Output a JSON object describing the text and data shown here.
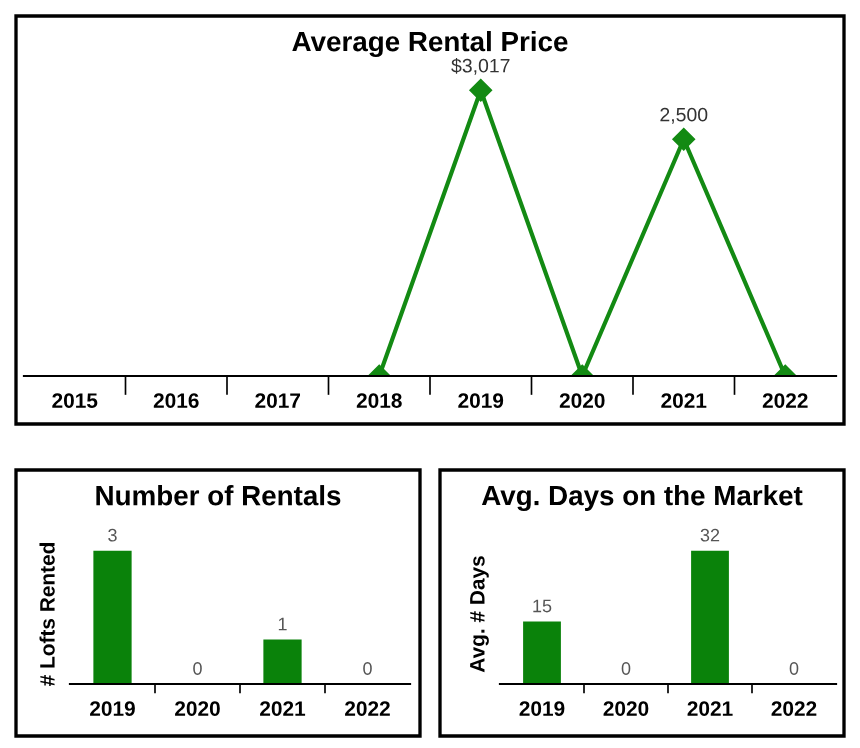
{
  "chart_data": [
    {
      "type": "line",
      "title": "Average Rental Price",
      "categories": [
        "2015",
        "2016",
        "2017",
        "2018",
        "2019",
        "2020",
        "2021",
        "2022"
      ],
      "series": [
        {
          "color": "#138a13",
          "values": [
            null,
            null,
            null,
            0,
            3017,
            0,
            2500,
            0
          ],
          "value_labels": [
            null,
            null,
            null,
            null,
            "$3,017",
            null,
            "2,500",
            null
          ]
        }
      ],
      "tick_labels": "x",
      "marker": "diamond",
      "grid": false,
      "legend": false
    },
    {
      "type": "bar",
      "title": "Number of Rentals",
      "ylabel": "# Lofts Rented",
      "categories": [
        "2019",
        "2020",
        "2021",
        "2022"
      ],
      "series": [
        {
          "color": "#0a820a",
          "values": [
            3,
            0,
            1,
            0
          ]
        }
      ],
      "tick_labels": "x",
      "data_labels": true,
      "grid": false,
      "legend": false
    },
    {
      "type": "bar",
      "title": "Avg. Days on the Market",
      "ylabel": "Avg. # Days",
      "categories": [
        "2019",
        "2020",
        "2021",
        "2022"
      ],
      "series": [
        {
          "color": "#0a820a",
          "values": [
            15,
            0,
            32,
            0
          ]
        }
      ],
      "tick_labels": "x",
      "data_labels": true,
      "grid": false,
      "legend": false
    }
  ]
}
